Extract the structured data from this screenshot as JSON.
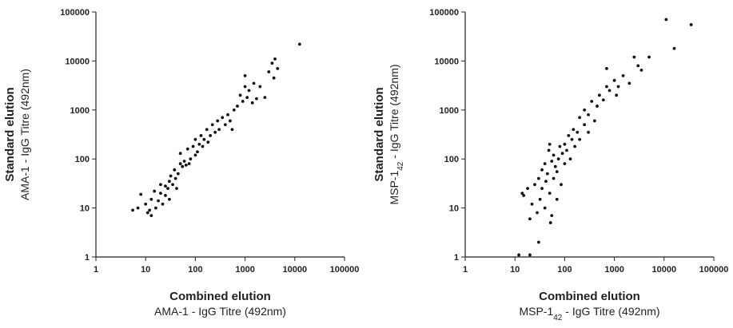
{
  "chart_data": [
    {
      "type": "scatter",
      "log": true,
      "color": "#111111",
      "xlabel_title": "Combined elution",
      "xlabel": [
        {
          "text": "AMA-1 - IgG Titre (492nm)"
        }
      ],
      "ylabel_title": "Standard elution",
      "ylabel": [
        {
          "text": "AMA-1 - IgG Titre (492nm)"
        }
      ],
      "xlim": [
        1,
        100000
      ],
      "ylim": [
        1,
        100000
      ],
      "xticks": [
        1,
        10,
        100,
        1000,
        10000,
        100000
      ],
      "yticks": [
        1,
        10,
        100,
        1000,
        10000,
        100000
      ],
      "x": [
        5.5,
        7,
        8,
        10,
        11,
        12,
        13,
        13,
        15,
        16,
        18,
        20,
        20,
        22,
        25,
        25,
        28,
        30,
        30,
        32,
        35,
        38,
        40,
        42,
        45,
        50,
        50,
        55,
        60,
        65,
        70,
        75,
        80,
        90,
        100,
        100,
        110,
        120,
        130,
        140,
        150,
        170,
        180,
        200,
        220,
        250,
        280,
        300,
        350,
        400,
        450,
        500,
        550,
        600,
        700,
        800,
        900,
        1000,
        1000,
        1100,
        1200,
        1400,
        1500,
        1700,
        2000,
        2500,
        3000,
        3500,
        4000,
        4500,
        3800,
        12500
      ],
      "values": [
        9,
        10,
        19,
        12,
        8,
        9,
        7,
        15,
        22,
        10,
        14,
        30,
        20,
        12,
        28,
        18,
        25,
        35,
        15,
        45,
        30,
        60,
        40,
        25,
        50,
        80,
        130,
        70,
        90,
        75,
        160,
        80,
        100,
        180,
        250,
        120,
        140,
        200,
        300,
        180,
        250,
        400,
        220,
        300,
        500,
        350,
        600,
        400,
        700,
        500,
        800,
        600,
        400,
        1000,
        1200,
        2000,
        1500,
        3000,
        5000,
        1800,
        2500,
        1400,
        3500,
        1700,
        3000,
        1800,
        6000,
        9000,
        11000,
        7000,
        4500,
        22000
      ]
    },
    {
      "type": "scatter",
      "log": true,
      "color": "#111111",
      "xlabel_title": "Combined elution",
      "xlabel": [
        {
          "text": "MSP-1"
        },
        {
          "text": "42",
          "sub": true
        },
        {
          "text": " - IgG Titre (492nm)"
        }
      ],
      "ylabel_title": "Standard elution",
      "ylabel": [
        {
          "text": "MSP-1"
        },
        {
          "text": "42",
          "sub": true
        },
        {
          "text": " - IgG Titre (492nm)"
        }
      ],
      "xlim": [
        1,
        100000
      ],
      "ylim": [
        1,
        100000
      ],
      "xticks": [
        1,
        10,
        100,
        1000,
        10000,
        100000
      ],
      "yticks": [
        1,
        10,
        100,
        1000,
        10000,
        100000
      ],
      "x": [
        12,
        14,
        15,
        18,
        20,
        20,
        22,
        25,
        28,
        30,
        30,
        32,
        35,
        35,
        40,
        40,
        42,
        45,
        48,
        50,
        50,
        52,
        55,
        55,
        60,
        60,
        65,
        70,
        70,
        75,
        80,
        85,
        90,
        100,
        100,
        110,
        120,
        130,
        140,
        150,
        160,
        180,
        200,
        200,
        250,
        250,
        300,
        300,
        350,
        400,
        450,
        500,
        600,
        700,
        700,
        800,
        1000,
        1100,
        1200,
        1500,
        2000,
        2500,
        3000,
        3500,
        5000,
        11000,
        16000,
        35000
      ],
      "values": [
        1.1,
        20,
        18,
        25,
        6,
        1.1,
        12,
        30,
        8,
        2,
        40,
        15,
        60,
        25,
        10,
        80,
        35,
        50,
        150,
        20,
        200,
        5,
        7,
        90,
        40,
        120,
        70,
        15,
        55,
        100,
        180,
        30,
        130,
        80,
        200,
        150,
        300,
        100,
        250,
        400,
        180,
        350,
        700,
        250,
        500,
        1000,
        350,
        800,
        1500,
        600,
        1200,
        2000,
        1600,
        3000,
        7000,
        2500,
        4000,
        2000,
        3000,
        5000,
        3500,
        12000,
        8000,
        6500,
        12000,
        70000,
        18000,
        55000
      ]
    }
  ]
}
